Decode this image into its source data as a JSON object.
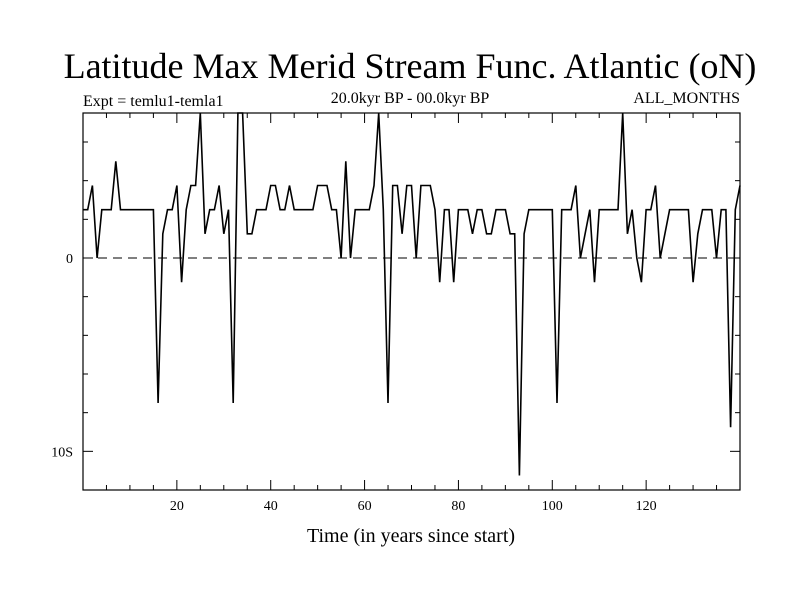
{
  "chart_data": {
    "type": "line",
    "title": "Latitude Max Merid Stream Func. Atlantic (oN)",
    "subtitle_left": "Expt = temlu1-temla1",
    "subtitle_center": "20.0kyr BP - 00.0kyr BP",
    "subtitle_right": "ALL_MONTHS",
    "xlabel": "Time (in years since start)",
    "ylabel": "",
    "xlim": [
      0,
      140
    ],
    "ylim": [
      -12.0,
      7.5
    ],
    "x_ticks": [
      20,
      40,
      60,
      80,
      100,
      120
    ],
    "x_tick_labels": [
      "20",
      "40",
      "60",
      "80",
      "100",
      "120"
    ],
    "y_ticks": [
      0,
      -10
    ],
    "y_tick_labels": [
      "0",
      "10S"
    ],
    "reference_line": 0,
    "line_color": "#000000",
    "series": [
      {
        "name": "",
        "x": [
          0,
          1,
          2,
          3,
          4,
          5,
          6,
          7,
          8,
          9,
          10,
          11,
          12,
          13,
          14,
          15,
          16,
          17,
          18,
          19,
          20,
          21,
          22,
          23,
          24,
          25,
          26,
          27,
          28,
          29,
          30,
          31,
          32,
          33,
          34,
          35,
          36,
          37,
          38,
          39,
          40,
          41,
          42,
          43,
          44,
          45,
          46,
          47,
          48,
          49,
          50,
          51,
          52,
          53,
          54,
          55,
          56,
          57,
          58,
          59,
          60,
          61,
          62,
          63,
          64,
          65,
          66,
          67,
          68,
          69,
          70,
          71,
          72,
          73,
          74,
          75,
          76,
          77,
          78,
          79,
          80,
          81,
          82,
          83,
          84,
          85,
          86,
          87,
          88,
          89,
          90,
          91,
          92,
          93,
          94,
          95,
          96,
          97,
          98,
          99,
          100,
          101,
          102,
          103,
          104,
          105,
          106,
          107,
          108,
          109,
          110,
          111,
          112,
          113,
          114,
          115,
          116,
          117,
          118,
          119,
          120,
          121,
          122,
          123,
          124,
          125,
          126,
          127,
          128,
          129,
          130,
          131,
          132,
          133,
          134,
          135,
          136,
          137,
          138,
          139,
          140
        ],
        "y": [
          2.5,
          2.5,
          3.75,
          0,
          2.5,
          2.5,
          2.5,
          5,
          2.5,
          2.5,
          2.5,
          2.5,
          2.5,
          2.5,
          2.5,
          2.5,
          -7.5,
          1.25,
          2.5,
          2.5,
          3.75,
          -1.25,
          2.5,
          3.75,
          3.75,
          7.5,
          1.25,
          2.5,
          2.5,
          3.75,
          1.25,
          2.5,
          -7.5,
          7.5,
          7.5,
          1.25,
          1.25,
          2.5,
          2.5,
          2.5,
          3.75,
          3.75,
          2.5,
          2.5,
          3.75,
          2.5,
          2.5,
          2.5,
          2.5,
          2.5,
          3.75,
          3.75,
          3.75,
          2.5,
          2.5,
          0,
          5,
          0,
          2.5,
          2.5,
          2.5,
          2.5,
          3.75,
          7.5,
          2.5,
          -7.5,
          3.75,
          3.75,
          1.25,
          3.75,
          3.75,
          0,
          3.75,
          3.75,
          3.75,
          2.5,
          -1.25,
          2.5,
          2.5,
          -1.25,
          2.5,
          2.5,
          2.5,
          1.25,
          2.5,
          2.5,
          1.25,
          1.25,
          2.5,
          2.5,
          2.5,
          1.25,
          1.25,
          -11.25,
          1.25,
          2.5,
          2.5,
          2.5,
          2.5,
          2.5,
          2.5,
          -7.5,
          2.5,
          2.5,
          2.5,
          3.75,
          0,
          1.25,
          2.5,
          -1.25,
          2.5,
          2.5,
          2.5,
          2.5,
          2.5,
          7.5,
          1.25,
          2.5,
          0,
          -1.25,
          2.5,
          2.5,
          3.75,
          0,
          1.25,
          2.5,
          2.5,
          2.5,
          2.5,
          2.5,
          -1.25,
          1.25,
          2.5,
          2.5,
          2.5,
          0,
          2.5,
          2.5,
          -8.75,
          2.5,
          3.75
        ]
      }
    ],
    "grid": false,
    "legend": "none"
  }
}
